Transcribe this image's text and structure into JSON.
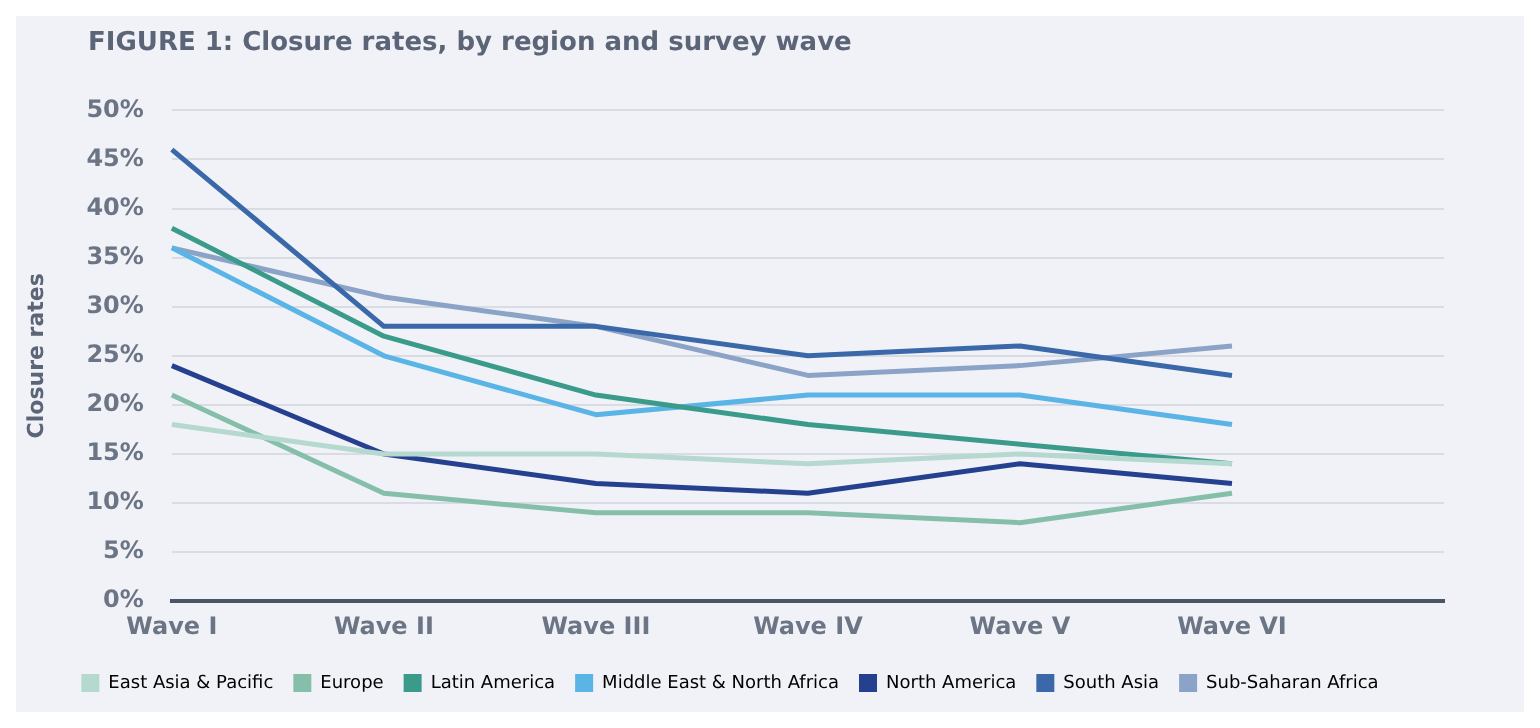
{
  "chart_data": {
    "type": "line",
    "title": "FIGURE 1: Closure rates, by region and survey wave",
    "ylabel": "Closure rates",
    "categories": [
      "Wave I",
      "Wave II",
      "Wave III",
      "Wave IV",
      "Wave V",
      "Wave VI",
      null
    ],
    "series": [
      {
        "name": "East Asia & Pacific",
        "color": "#b5d8cf",
        "values": [
          18,
          15,
          15,
          14,
          15,
          14,
          null
        ]
      },
      {
        "name": "Europe",
        "color": "#86bfa9",
        "values": [
          21,
          11,
          9,
          9,
          8,
          11,
          null
        ]
      },
      {
        "name": "Latin America",
        "color": "#3a9b8a",
        "values": [
          38,
          27,
          21,
          18,
          16,
          14,
          null
        ]
      },
      {
        "name": "Middle East & North Africa",
        "color": "#5ab4e5",
        "values": [
          36,
          25,
          19,
          21,
          21,
          18,
          null
        ]
      },
      {
        "name": "North America",
        "color": "#25408f",
        "values": [
          24,
          15,
          12,
          11,
          14,
          12,
          null
        ]
      },
      {
        "name": "South Asia",
        "color": "#3a68a8",
        "values": [
          46,
          28,
          28,
          25,
          26,
          23,
          null
        ]
      },
      {
        "name": "Sub-Saharan Africa",
        "color": "#8aa3c7",
        "values": [
          36,
          31,
          28,
          23,
          24,
          26,
          null
        ]
      }
    ],
    "ylim": [
      0,
      50
    ],
    "yticks": [
      {
        "value": 0,
        "label": "0%"
      },
      {
        "value": 5,
        "label": "5%"
      },
      {
        "value": 10,
        "label": "10%"
      },
      {
        "value": 15,
        "label": "15%"
      },
      {
        "value": 20,
        "label": "20%"
      },
      {
        "value": 25,
        "label": "25%"
      },
      {
        "value": 30,
        "label": "30%"
      },
      {
        "value": 35,
        "label": "35%"
      },
      {
        "value": 40,
        "label": "40%"
      },
      {
        "value": 45,
        "label": "45%"
      },
      {
        "value": 50,
        "label": "50%"
      }
    ],
    "grid": "y",
    "legend": "bottom",
    "marker": "none",
    "line_style": "solid"
  }
}
